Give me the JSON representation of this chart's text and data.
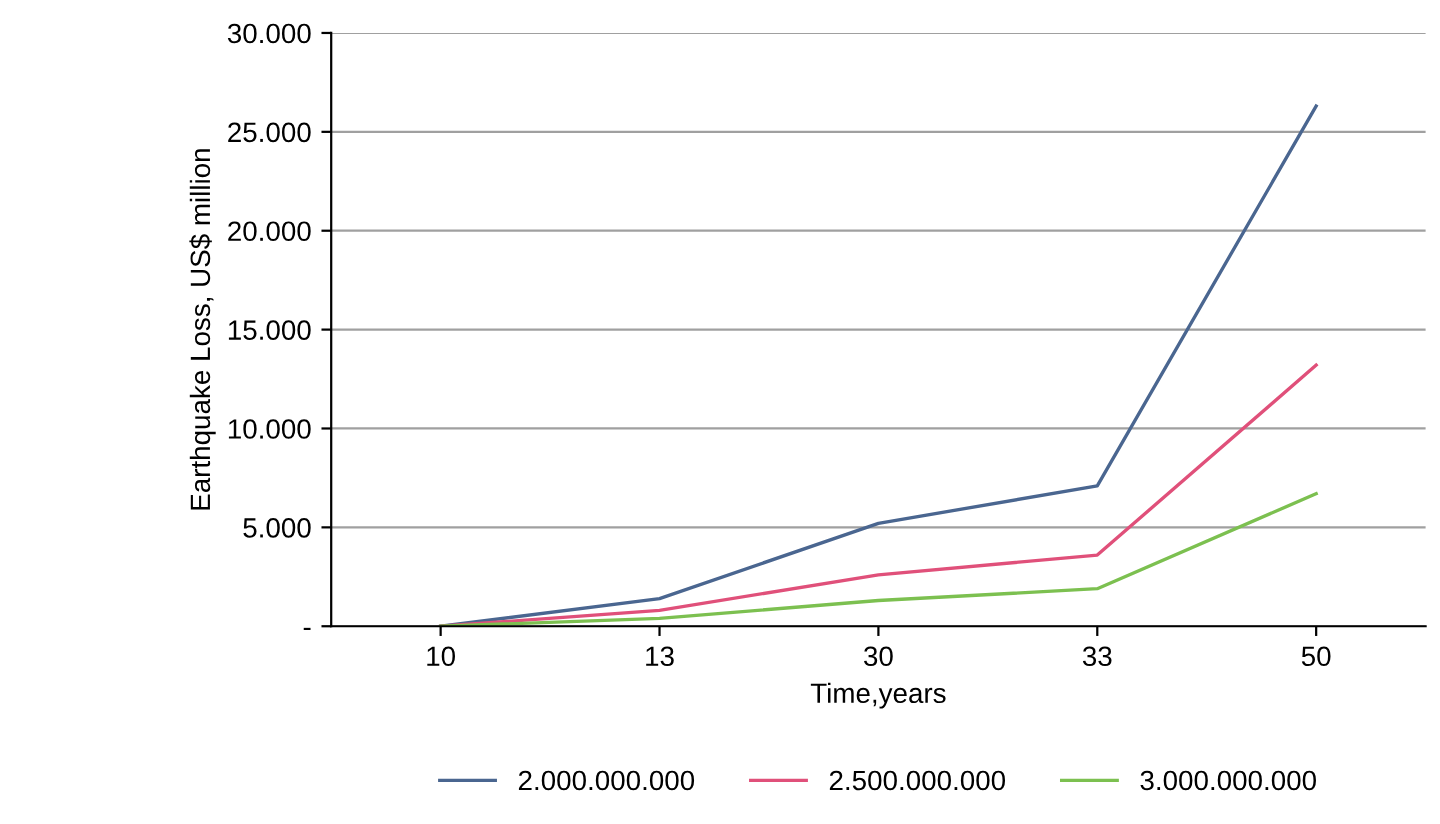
{
  "chart_data": {
    "type": "line",
    "xlabel": "Time,years",
    "ylabel": "Earthquake Loss, US$ million",
    "categories": [
      "10",
      "13",
      "30",
      "33",
      "50"
    ],
    "series": [
      {
        "name": "2.000.000.000",
        "color": "#4a6690",
        "values": [
          0,
          1400,
          5200,
          7100,
          26300
        ]
      },
      {
        "name": "2.500.000.000",
        "color": "#e0507a",
        "values": [
          0,
          800,
          2600,
          3600,
          13200
        ]
      },
      {
        "name": "3.000.000.000",
        "color": "#7cc050",
        "values": [
          0,
          400,
          1300,
          1900,
          6700
        ]
      }
    ],
    "ylim": [
      0,
      30000
    ],
    "yticks": [
      {
        "value": 0,
        "label": "-"
      },
      {
        "value": 5000,
        "label": "5.000"
      },
      {
        "value": 10000,
        "label": "10.000"
      },
      {
        "value": 15000,
        "label": "15.000"
      },
      {
        "value": 20000,
        "label": "20.000"
      },
      {
        "value": 25000,
        "label": "25.000"
      },
      {
        "value": 30000,
        "label": "30.000"
      }
    ],
    "grid": "y",
    "legend": "bottom",
    "marker": "none",
    "line_style": "solid"
  }
}
